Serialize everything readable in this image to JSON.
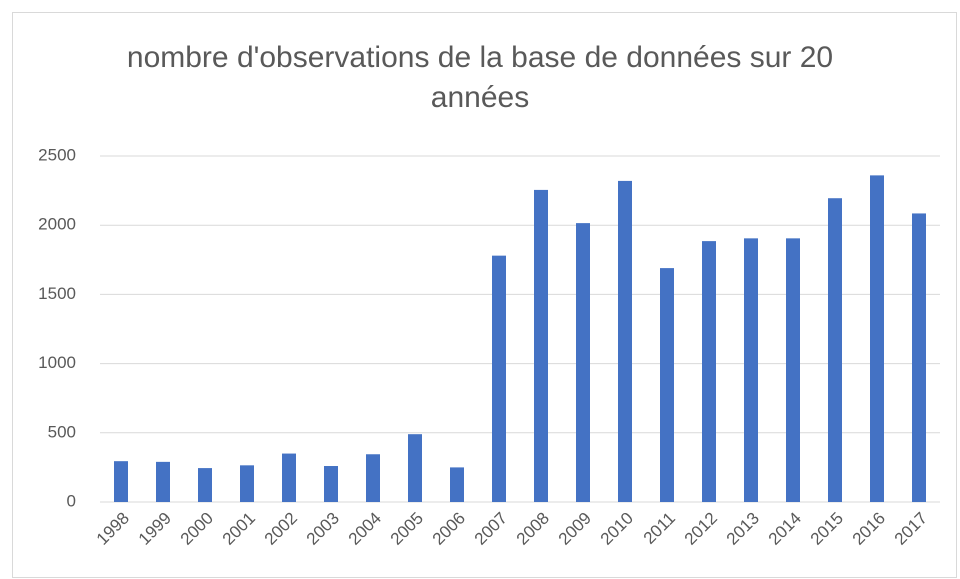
{
  "chart_data": {
    "type": "bar",
    "title": "nombre d'observations de la base de données sur 20 années",
    "categories": [
      "1998",
      "1999",
      "2000",
      "2001",
      "2002",
      "2003",
      "2004",
      "2005",
      "2006",
      "2007",
      "2008",
      "2009",
      "2010",
      "2011",
      "2012",
      "2013",
      "2014",
      "2015",
      "2016",
      "2017"
    ],
    "values": [
      295,
      290,
      245,
      265,
      350,
      260,
      345,
      490,
      250,
      1780,
      2255,
      2015,
      2320,
      1690,
      1885,
      1905,
      1905,
      2195,
      2360,
      2085
    ],
    "color": "#4472c4",
    "ylim": [
      0,
      2500
    ],
    "yticks": [
      0,
      500,
      1000,
      1500,
      2000,
      2500
    ],
    "grid": true
  }
}
